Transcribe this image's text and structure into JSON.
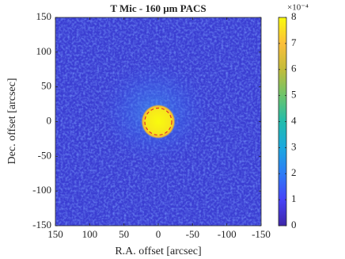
{
  "chart_data": {
    "type": "heatmap",
    "title": "T Mic - 160 μm PACS",
    "x_label": "R.A. offset [arcsec]",
    "y_label": "Dec. offset [arcsec]",
    "xlim": [
      150,
      -150
    ],
    "xticks": [
      150,
      100,
      50,
      0,
      -50,
      -100,
      -150
    ],
    "ylim": [
      -150,
      150
    ],
    "yticks": [
      -150,
      -100,
      -50,
      0,
      50,
      100,
      150
    ],
    "colorbar": {
      "lim": [
        0,
        8
      ],
      "ticks": [
        0,
        1,
        2,
        3,
        4,
        5,
        6,
        7,
        8
      ],
      "scale_label": "×10⁻⁴"
    }
  }
}
